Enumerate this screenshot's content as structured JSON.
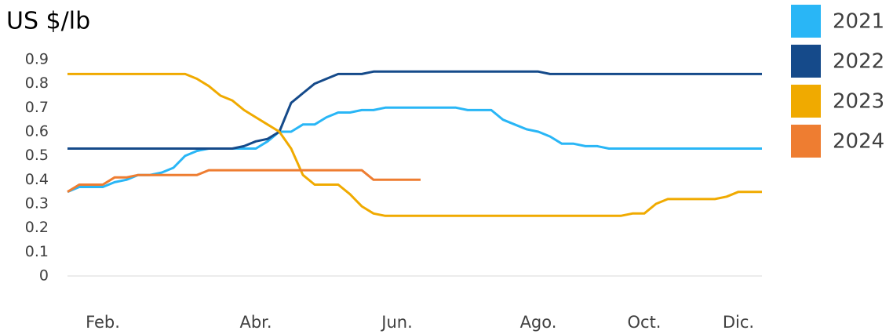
{
  "chart_data": {
    "type": "line",
    "title": "US $/lb",
    "categories": [
      null,
      null,
      null,
      "Feb.",
      null,
      null,
      null,
      null,
      null,
      null,
      null,
      null,
      null,
      null,
      null,
      null,
      "Abr.",
      null,
      null,
      null,
      null,
      null,
      null,
      null,
      null,
      null,
      null,
      null,
      "Jun.",
      null,
      null,
      null,
      null,
      null,
      null,
      null,
      null,
      null,
      null,
      null,
      "Ago.",
      null,
      null,
      null,
      null,
      null,
      null,
      null,
      null,
      "Oct.",
      null,
      null,
      null,
      null,
      null,
      null,
      null,
      "Dic.",
      null,
      null
    ],
    "series": [
      {
        "name": "2021",
        "color": "#29b6f6",
        "values": [
          0.35,
          0.37,
          0.37,
          0.37,
          0.39,
          0.4,
          0.42,
          0.42,
          0.43,
          0.45,
          0.5,
          0.52,
          0.53,
          0.53,
          0.53,
          0.53,
          0.53,
          0.56,
          0.6,
          0.6,
          0.63,
          0.63,
          0.66,
          0.68,
          0.68,
          0.69,
          0.69,
          0.7,
          0.7,
          0.7,
          0.7,
          0.7,
          0.7,
          0.7,
          0.69,
          0.69,
          0.69,
          0.65,
          0.63,
          0.61,
          0.6,
          0.58,
          0.55,
          0.55,
          0.54,
          0.54,
          0.53,
          0.53,
          0.53,
          0.53,
          0.53,
          0.53,
          0.53,
          0.53,
          0.53,
          0.53,
          0.53,
          0.53,
          0.53,
          0.53
        ]
      },
      {
        "name": "2022",
        "color": "#154a8a",
        "values": [
          0.53,
          0.53,
          0.53,
          0.53,
          0.53,
          0.53,
          0.53,
          0.53,
          0.53,
          0.53,
          0.53,
          0.53,
          0.53,
          0.53,
          0.53,
          0.54,
          0.56,
          0.57,
          0.6,
          0.72,
          0.76,
          0.8,
          0.82,
          0.84,
          0.84,
          0.84,
          0.85,
          0.85,
          0.85,
          0.85,
          0.85,
          0.85,
          0.85,
          0.85,
          0.85,
          0.85,
          0.85,
          0.85,
          0.85,
          0.85,
          0.85,
          0.84,
          0.84,
          0.84,
          0.84,
          0.84,
          0.84,
          0.84,
          0.84,
          0.84,
          0.84,
          0.84,
          0.84,
          0.84,
          0.84,
          0.84,
          0.84,
          0.84,
          0.84,
          0.84
        ]
      },
      {
        "name": "2023",
        "color": "#f0aa00",
        "values": [
          0.84,
          0.84,
          0.84,
          0.84,
          0.84,
          0.84,
          0.84,
          0.84,
          0.84,
          0.84,
          0.84,
          0.82,
          0.79,
          0.75,
          0.73,
          0.69,
          0.66,
          0.63,
          0.6,
          0.53,
          0.42,
          0.38,
          0.38,
          0.38,
          0.34,
          0.29,
          0.26,
          0.25,
          0.25,
          0.25,
          0.25,
          0.25,
          0.25,
          0.25,
          0.25,
          0.25,
          0.25,
          0.25,
          0.25,
          0.25,
          0.25,
          0.25,
          0.25,
          0.25,
          0.25,
          0.25,
          0.25,
          0.25,
          0.26,
          0.26,
          0.3,
          0.32,
          0.32,
          0.32,
          0.32,
          0.32,
          0.33,
          0.35,
          0.35,
          0.35
        ]
      },
      {
        "name": "2024",
        "color": "#ee7d31",
        "values": [
          0.35,
          0.38,
          0.38,
          0.38,
          0.41,
          0.41,
          0.42,
          0.42,
          0.42,
          0.42,
          0.42,
          0.42,
          0.44,
          0.44,
          0.44,
          0.44,
          0.44,
          0.44,
          0.44,
          0.44,
          0.44,
          0.44,
          0.44,
          0.44,
          0.44,
          0.44,
          0.4,
          0.4,
          0.4,
          0.4,
          0.4,
          null,
          null,
          null,
          null,
          null,
          null,
          null,
          null,
          null,
          null,
          null,
          null,
          null,
          null,
          null,
          null,
          null,
          null,
          null,
          null,
          null,
          null,
          null,
          null,
          null,
          null,
          null,
          null,
          null
        ]
      }
    ],
    "ylim": [
      0,
      0.9
    ],
    "yticks": [
      0,
      0.1,
      0.2,
      0.3,
      0.4,
      0.5,
      0.6,
      0.7,
      0.8,
      0.9
    ],
    "grid": false,
    "legend": "right"
  }
}
